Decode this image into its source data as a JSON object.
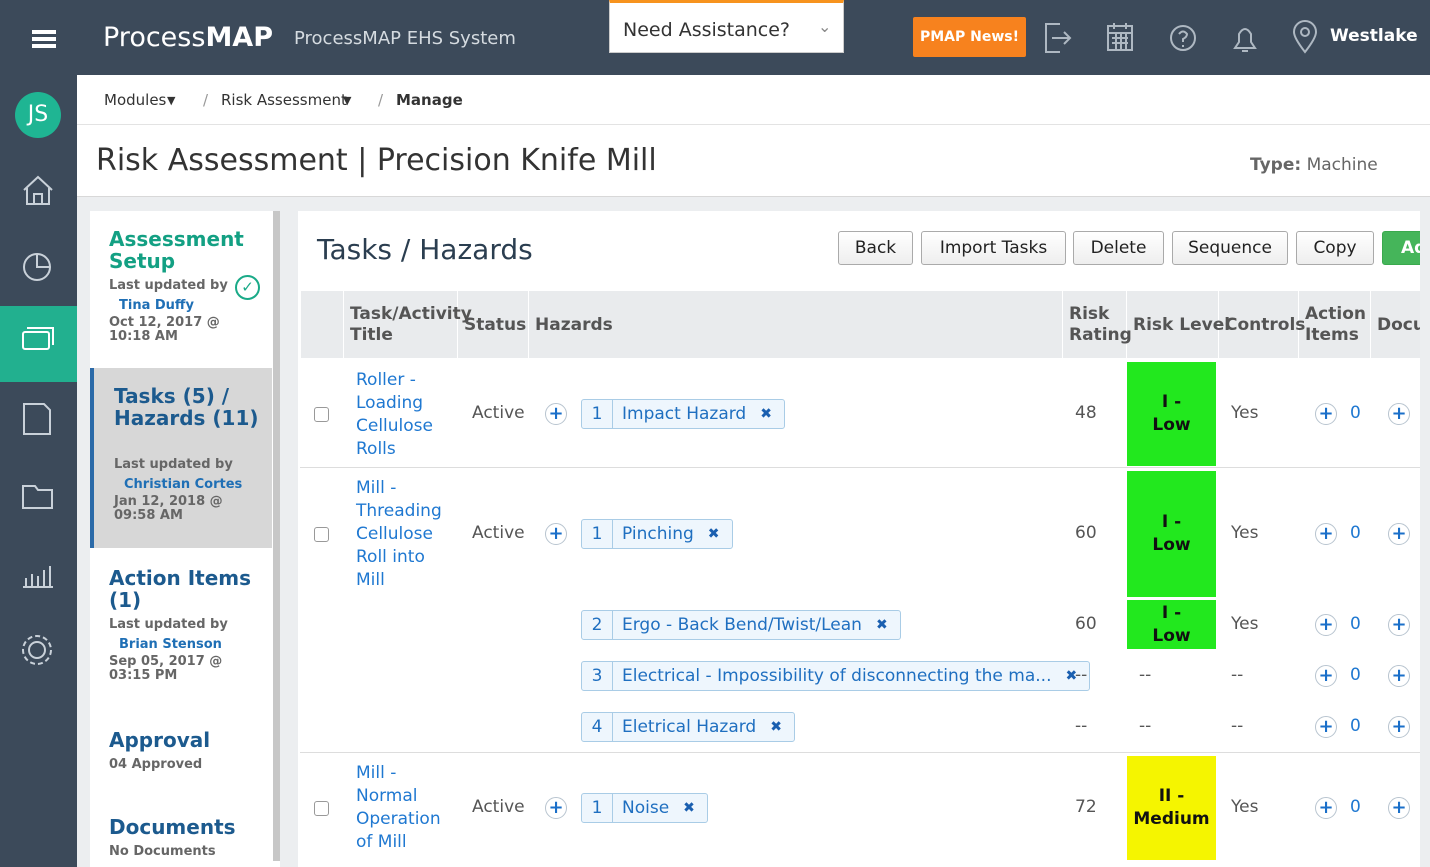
{
  "header": {
    "logo_light": "Process",
    "logo_bold": "MAP",
    "system_name": "ProcessMAP EHS System",
    "assistance": "Need Assistance?",
    "news_button": "PMAP News!",
    "location": "Westlake"
  },
  "sidebar": {
    "avatar": "JS"
  },
  "breadcrumb": [
    "Modules",
    "Risk Assessment",
    "Manage"
  ],
  "page": {
    "title": "Risk Assessment | Precision Knife Mill",
    "type_label": "Type:",
    "type_value": "Machine"
  },
  "steps": [
    {
      "title": "Assessment Setup",
      "updated_label": "Last updated by",
      "updated_by": "Tina Duffy",
      "date": "Oct 12, 2017 @ 10:18 AM"
    },
    {
      "title": "Tasks (5) / Hazards (11)",
      "updated_label": "Last updated by",
      "updated_by": "Christian Cortes",
      "date": "Jan 12, 2018 @ 09:58 AM"
    },
    {
      "title": "Action Items (1)",
      "updated_label": "Last updated by",
      "updated_by": "Brian Stenson",
      "date": "Sep 05, 2017 @ 03:15 PM"
    },
    {
      "title": "Approval",
      "detail": "04 Approved"
    },
    {
      "title": "Documents",
      "detail": "No Documents"
    }
  ],
  "panel": {
    "title": "Tasks / Hazards",
    "buttons": [
      "Back",
      "Import Tasks",
      "Delete",
      "Sequence",
      "Copy",
      "Ad"
    ]
  },
  "table": {
    "columns": [
      "Task/Activity Title",
      "Status",
      "Hazards",
      "Risk Rating",
      "Risk Level",
      "Controls",
      "Action Items",
      "Docu"
    ],
    "tasks": [
      {
        "title": "Roller - Loading Cellulose Rolls",
        "status": "Active",
        "hazards": [
          {
            "number": 1,
            "name": "Impact Hazard",
            "risk_rating": 48,
            "risk_level": "I - Low",
            "level_color": "#22e81e",
            "controls": "Yes",
            "action_items": 0
          }
        ]
      },
      {
        "title": "Mill - Threading Cellulose Roll into Mill",
        "status": "Active",
        "hazards": [
          {
            "number": 1,
            "name": "Pinching",
            "risk_rating": 60,
            "risk_level": "I - Low",
            "level_color": "#22e81e",
            "controls": "Yes",
            "action_items": 0
          },
          {
            "number": 2,
            "name": "Ergo - Back Bend/Twist/Lean",
            "risk_rating": 60,
            "risk_level": "I - Low",
            "level_color": "#22e81e",
            "controls": "Yes",
            "action_items": 0
          },
          {
            "number": 3,
            "name": "Electrical - Impossibility of disconnecting the ma...",
            "risk_rating": "--",
            "risk_level": "--",
            "controls": "--",
            "action_items": 0
          },
          {
            "number": 4,
            "name": "Eletrical Hazard",
            "risk_rating": "--",
            "risk_level": "--",
            "controls": "--",
            "action_items": 0
          }
        ]
      },
      {
        "title": "Mill - Normal Operation of Mill",
        "status": "Active",
        "hazards": [
          {
            "number": 1,
            "name": "Noise",
            "risk_rating": 72,
            "risk_level": "II - Medium",
            "level_color": "#f5f500",
            "controls": "Yes",
            "action_items": 0
          }
        ]
      }
    ]
  }
}
